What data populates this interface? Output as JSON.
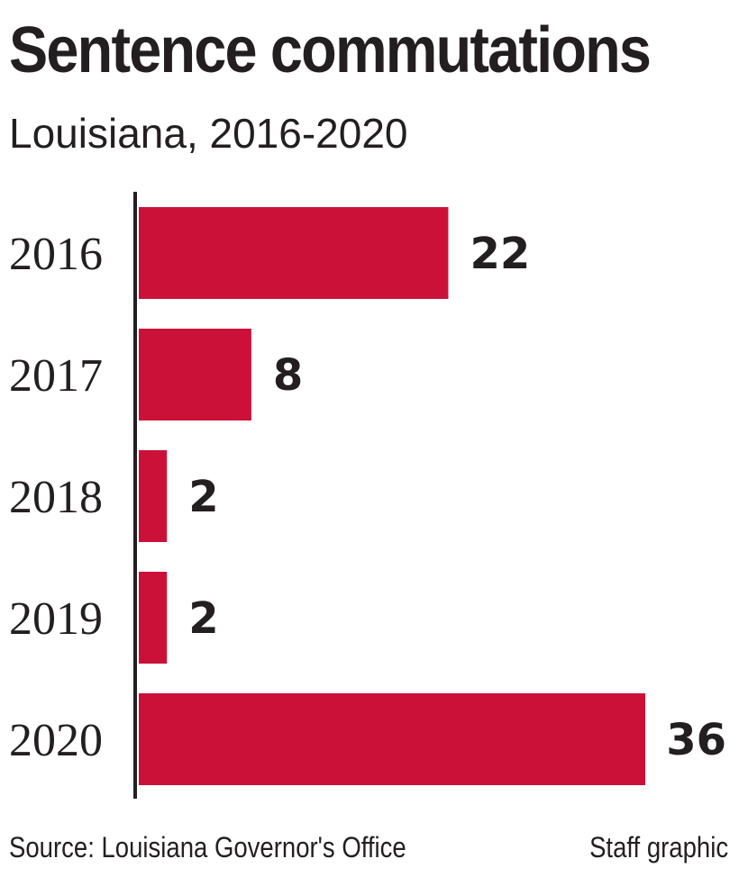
{
  "title": "Sentence commutations",
  "subtitle": "Louisiana, 2016-2020",
  "footer": {
    "source": "Source: Louisiana Governor's Office",
    "credit": "Staff graphic"
  },
  "colors": {
    "bar": "#cc1139",
    "text": "#231f20",
    "axis": "#231f20"
  },
  "chart_data": {
    "type": "bar",
    "orientation": "horizontal",
    "categories": [
      "2016",
      "2017",
      "2018",
      "2019",
      "2020"
    ],
    "values": [
      22,
      8,
      2,
      2,
      36
    ],
    "xlim": [
      0,
      36
    ],
    "grid": false,
    "data_labels": true
  }
}
